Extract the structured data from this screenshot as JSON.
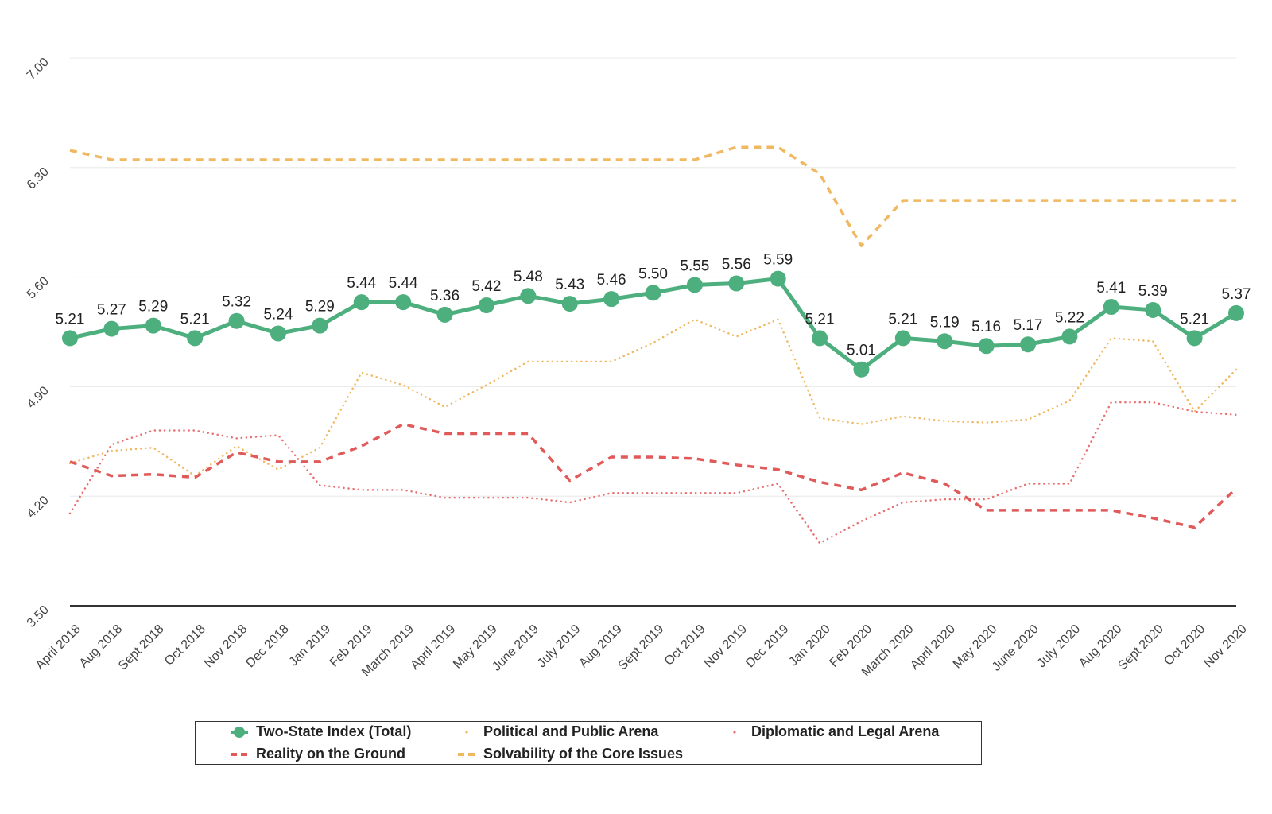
{
  "chart_data": {
    "type": "line",
    "title": "",
    "xlabel": "",
    "ylabel": "",
    "ylim": [
      3.5,
      7.0
    ],
    "yticks": [
      "3.50",
      "4.20",
      "4.90",
      "5.60",
      "6.30",
      "7.00"
    ],
    "ytick_values": [
      3.5,
      4.2,
      4.9,
      5.6,
      6.3,
      7.0
    ],
    "grid": true,
    "legend_position": "bottom",
    "categories": [
      "April 2018",
      "Aug 2018",
      "Sept 2018",
      "Oct 2018",
      "Nov 2018",
      "Dec 2018",
      "Jan 2019",
      "Feb 2019",
      "March 2019",
      "April 2019",
      "May 2019",
      "June 2019",
      "July 2019",
      "Aug 2019",
      "Sept 2019",
      "Oct 2019",
      "Nov 2019",
      "Dec 2019",
      "Jan 2020",
      "Feb 2020",
      "March 2020",
      "April 2020",
      "May 2020",
      "June 2020",
      "July 2020",
      "Aug 2020",
      "Sept 2020",
      "Oct 2020",
      "Nov 2020"
    ],
    "series": [
      {
        "name": "Two-State Index (Total)",
        "color": "#4caf7d",
        "style": "solid-markers",
        "values": [
          5.21,
          5.27,
          5.29,
          5.21,
          5.32,
          5.24,
          5.29,
          5.44,
          5.44,
          5.36,
          5.42,
          5.48,
          5.43,
          5.46,
          5.5,
          5.55,
          5.56,
          5.59,
          5.21,
          5.01,
          5.21,
          5.19,
          5.16,
          5.17,
          5.22,
          5.41,
          5.39,
          5.21,
          5.37
        ],
        "labels": [
          "5.21",
          "5.27",
          "5.29",
          "5.21",
          "5.32",
          "5.24",
          "5.29",
          "5.44",
          "5.44",
          "5.36",
          "5.42",
          "5.48",
          "5.43",
          "5.46",
          "5.50",
          "5.55",
          "5.56",
          "5.59",
          "5.21",
          "5.01",
          "5.21",
          "5.19",
          "5.16",
          "5.17",
          "5.22",
          "5.41",
          "5.39",
          "5.21",
          "5.37"
        ]
      },
      {
        "name": "Political and Public Arena",
        "color": "#f0b860",
        "style": "dotted",
        "values": [
          4.41,
          4.49,
          4.51,
          4.33,
          4.52,
          4.37,
          4.51,
          4.99,
          4.91,
          4.77,
          4.91,
          5.06,
          5.06,
          5.06,
          5.18,
          5.33,
          5.22,
          5.33,
          4.7,
          4.66,
          4.71,
          4.68,
          4.67,
          4.69,
          4.81,
          5.21,
          5.19,
          4.74,
          5.01
        ]
      },
      {
        "name": "Diplomatic and Legal Arena",
        "color": "#e87070",
        "style": "dotted",
        "values": [
          4.09,
          4.53,
          4.62,
          4.62,
          4.57,
          4.59,
          4.27,
          4.24,
          4.24,
          4.19,
          4.19,
          4.19,
          4.16,
          4.22,
          4.22,
          4.22,
          4.22,
          4.28,
          3.9,
          4.04,
          4.16,
          4.18,
          4.18,
          4.28,
          4.28,
          4.8,
          4.8,
          4.74,
          4.72
        ]
      },
      {
        "name": "Reality on the Ground",
        "color": "#e05a5a",
        "style": "dashed",
        "values": [
          4.42,
          4.33,
          4.34,
          4.32,
          4.48,
          4.42,
          4.42,
          4.52,
          4.66,
          4.6,
          4.6,
          4.6,
          4.3,
          4.45,
          4.45,
          4.44,
          4.4,
          4.37,
          4.29,
          4.24,
          4.35,
          4.28,
          4.11,
          4.11,
          4.11,
          4.11,
          4.06,
          4.0,
          4.25
        ]
      },
      {
        "name": "Solvability of the Core Issues",
        "color": "#f0b860",
        "style": "dashed",
        "values": [
          6.41,
          6.35,
          6.35,
          6.35,
          6.35,
          6.35,
          6.35,
          6.35,
          6.35,
          6.35,
          6.35,
          6.35,
          6.35,
          6.35,
          6.35,
          6.35,
          6.43,
          6.43,
          6.26,
          5.8,
          6.09,
          6.09,
          6.09,
          6.09,
          6.09,
          6.09,
          6.09,
          6.09,
          6.09
        ]
      }
    ]
  },
  "legend": {
    "items": [
      {
        "label": "Two-State Index (Total)"
      },
      {
        "label": "Political and Public Arena"
      },
      {
        "label": "Diplomatic and Legal Arena"
      },
      {
        "label": "Reality on the Ground"
      },
      {
        "label": "Solvability of the Core Issues"
      }
    ]
  }
}
